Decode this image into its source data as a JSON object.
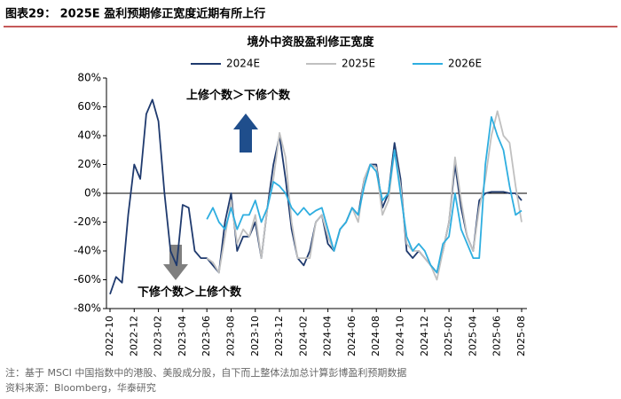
{
  "header": {
    "title": "图表29： 2025E 盈利预期修正宽度近期有所上行"
  },
  "chart_data": {
    "type": "line",
    "title": "境外中资股盈利修正宽度",
    "categories": [
      "2022-10",
      null,
      null,
      null,
      "2022-12",
      null,
      null,
      null,
      "2023-02",
      null,
      null,
      null,
      "2023-04",
      null,
      null,
      null,
      "2023-06",
      null,
      null,
      null,
      "2023-08",
      null,
      null,
      null,
      "2023-10",
      null,
      null,
      null,
      "2023-12",
      null,
      null,
      null,
      "2024-02",
      null,
      null,
      null,
      "2024-04",
      null,
      null,
      null,
      "2024-06",
      null,
      null,
      null,
      "2024-08",
      null,
      null,
      null,
      "2024-10",
      null,
      null,
      null,
      "2024-12",
      null,
      null,
      null,
      "2025-02",
      null,
      null,
      null,
      "2025-04",
      null,
      null,
      null,
      "2025-06",
      null,
      null,
      null,
      "2025-08"
    ],
    "series": [
      {
        "name": "2024E",
        "color": "#1f3a6e",
        "values": [
          -70,
          -58,
          -62,
          -15,
          20,
          10,
          55,
          65,
          50,
          0,
          -40,
          -50,
          -8,
          -10,
          -40,
          -45,
          -45,
          -50,
          -55,
          -20,
          0,
          -40,
          -30,
          -30,
          -20,
          -45,
          -10,
          20,
          40,
          10,
          -25,
          -45,
          -50,
          -40,
          -20,
          -15,
          -35,
          -40,
          -25,
          -20,
          -10,
          -15,
          10,
          20,
          20,
          -10,
          0,
          35,
          10,
          -40,
          -45,
          -40,
          -45,
          -50,
          -55,
          -40,
          -20,
          20,
          -10,
          -30,
          -40,
          -5,
          0,
          1,
          1,
          1,
          0,
          0,
          -5
        ]
      },
      {
        "name": "2025E",
        "color": "#c0c0c0",
        "values": [
          null,
          null,
          null,
          null,
          null,
          null,
          null,
          null,
          null,
          null,
          null,
          null,
          null,
          null,
          null,
          null,
          -45,
          -48,
          -55,
          -30,
          -5,
          -35,
          -25,
          -30,
          -15,
          -45,
          -10,
          10,
          42,
          25,
          -20,
          -45,
          -45,
          -45,
          -20,
          -15,
          -30,
          -40,
          -25,
          -20,
          -10,
          -20,
          10,
          20,
          18,
          -15,
          -5,
          30,
          5,
          -35,
          -40,
          -40,
          -45,
          -50,
          -60,
          -40,
          -20,
          25,
          -5,
          -30,
          -40,
          -10,
          10,
          40,
          57,
          40,
          35,
          5,
          -20
        ]
      },
      {
        "name": "2026E",
        "color": "#2eaee0",
        "values": [
          null,
          null,
          null,
          null,
          null,
          null,
          null,
          null,
          null,
          null,
          null,
          null,
          null,
          null,
          null,
          null,
          -18,
          -10,
          -20,
          -25,
          -10,
          -25,
          -15,
          -15,
          -5,
          -20,
          -10,
          8,
          5,
          0,
          -10,
          -15,
          -10,
          -15,
          -12,
          -10,
          -25,
          -40,
          -25,
          -20,
          -10,
          -15,
          5,
          20,
          15,
          -5,
          0,
          30,
          0,
          -30,
          -40,
          -35,
          -40,
          -50,
          -55,
          -35,
          -30,
          0,
          -25,
          -35,
          -45,
          -45,
          20,
          53,
          40,
          30,
          5,
          -15,
          -12
        ]
      }
    ],
    "ylim": [
      -80,
      80
    ],
    "yticks": [
      {
        "value": -80,
        "label": "-80%"
      },
      {
        "value": -60,
        "label": "-60%"
      },
      {
        "value": -40,
        "label": "-40%"
      },
      {
        "value": -20,
        "label": "-20%"
      },
      {
        "value": 0,
        "label": "0%"
      },
      {
        "value": 20,
        "label": "20%"
      },
      {
        "value": 40,
        "label": "40%"
      },
      {
        "value": 60,
        "label": "60%"
      },
      {
        "value": 80,
        "label": "80%"
      }
    ],
    "annotations": [
      "上修个数＞下修个数",
      "下修个数＞上修个数"
    ],
    "legend": "top"
  },
  "footer": {
    "note": "注：基于 MSCI 中国指数中的港股、美股成分股，自下而上整体法加总计算彭博盈利预期数据",
    "source": "资料来源：Bloomberg，华泰研究"
  }
}
